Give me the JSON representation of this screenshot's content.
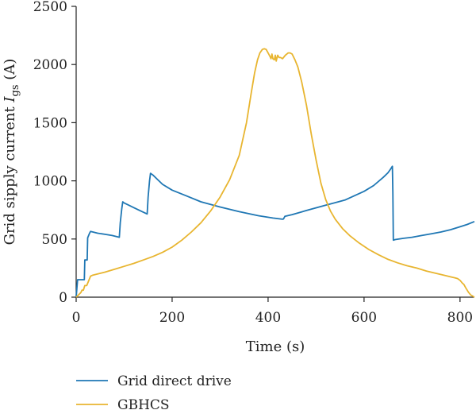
{
  "chart_data": {
    "type": "line",
    "title": "",
    "xlabel": "Time (s)",
    "ylabel": "Grid sipply current I_gs (A)",
    "ylabel_main": "Grid sipply current ",
    "ylabel_italic": "I",
    "ylabel_sub": "gs",
    "ylabel_unit": " (A)",
    "xlim": [
      0,
      830
    ],
    "ylim": [
      0,
      2500
    ],
    "xticks": [
      0,
      200,
      400,
      600,
      800
    ],
    "yticks": [
      0,
      500,
      1000,
      1500,
      2000,
      2500
    ],
    "grid": false,
    "legend_position": "bottom-left",
    "series": [
      {
        "name": "Grid direct drive",
        "color": "#1f77b4",
        "x": [
          0,
          3,
          17,
          18,
          23,
          24,
          28,
          30,
          35,
          45,
          60,
          75,
          90,
          92,
          95,
          97,
          100,
          110,
          120,
          130,
          140,
          148,
          150,
          153,
          155,
          160,
          170,
          180,
          200,
          230,
          260,
          300,
          340,
          380,
          410,
          430,
          432,
          435,
          450,
          480,
          520,
          560,
          600,
          620,
          640,
          650,
          655,
          659,
          660,
          661,
          665,
          680,
          700,
          720,
          740,
          760,
          780,
          800,
          815,
          830
        ],
        "y": [
          0,
          150,
          150,
          320,
          320,
          510,
          550,
          565,
          560,
          550,
          540,
          530,
          515,
          640,
          760,
          820,
          810,
          790,
          770,
          750,
          730,
          715,
          860,
          1000,
          1065,
          1050,
          1010,
          970,
          920,
          870,
          820,
          775,
          735,
          700,
          680,
          670,
          672,
          695,
          710,
          745,
          790,
          835,
          910,
          960,
          1030,
          1070,
          1100,
          1125,
          900,
          490,
          495,
          505,
          515,
          530,
          545,
          560,
          580,
          605,
          625,
          650
        ]
      },
      {
        "name": "GBHCS",
        "color": "#e8b530",
        "x": [
          0,
          5,
          10,
          12,
          15,
          18,
          22,
          25,
          30,
          35,
          40,
          50,
          60,
          80,
          100,
          120,
          140,
          160,
          180,
          200,
          220,
          240,
          260,
          280,
          300,
          320,
          340,
          355,
          365,
          372,
          378,
          383,
          388,
          392,
          396,
          400,
          404,
          406,
          408,
          410,
          413,
          415,
          417,
          420,
          423,
          426,
          430,
          436,
          442,
          446,
          450,
          456,
          462,
          470,
          480,
          490,
          500,
          510,
          520,
          530,
          540,
          555,
          570,
          590,
          610,
          630,
          650,
          670,
          690,
          710,
          730,
          750,
          770,
          780,
          790,
          795,
          800,
          805,
          808,
          812,
          815,
          818,
          822,
          826,
          830
        ],
        "y": [
          0,
          20,
          40,
          60,
          60,
          100,
          100,
          130,
          180,
          190,
          195,
          205,
          215,
          240,
          265,
          290,
          320,
          350,
          385,
          430,
          490,
          560,
          640,
          740,
          860,
          1010,
          1220,
          1500,
          1760,
          1930,
          2040,
          2100,
          2130,
          2135,
          2130,
          2100,
          2070,
          2050,
          2090,
          2050,
          2040,
          2080,
          2030,
          2080,
          2060,
          2060,
          2050,
          2080,
          2100,
          2100,
          2090,
          2040,
          1980,
          1850,
          1650,
          1400,
          1180,
          980,
          840,
          740,
          670,
          590,
          530,
          465,
          410,
          365,
          325,
          295,
          270,
          250,
          225,
          205,
          185,
          175,
          165,
          160,
          145,
          120,
          110,
          80,
          60,
          40,
          20,
          10,
          0
        ]
      }
    ]
  }
}
